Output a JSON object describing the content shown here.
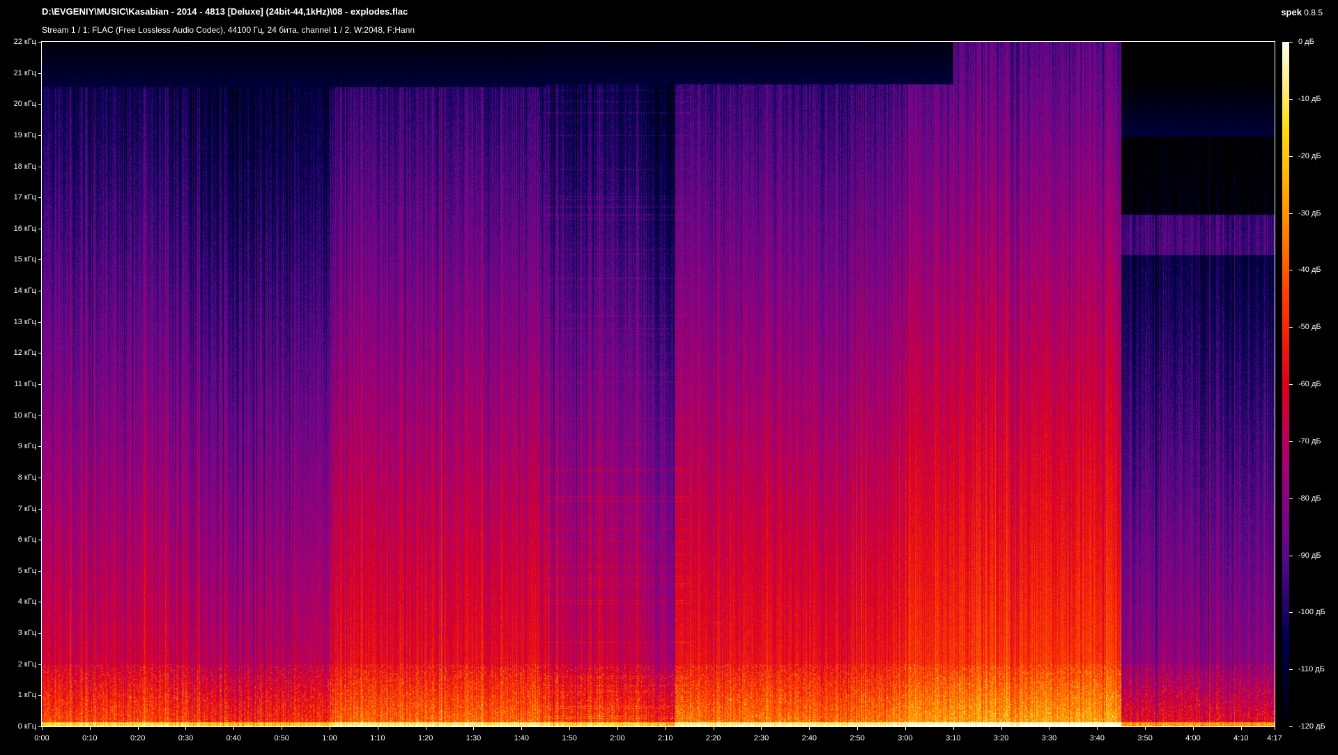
{
  "header": {
    "title": "D:\\EVGENIY\\MUSIC\\Kasabian - 2014 - 4813 [Deluxe] (24bit-44,1kHz)\\08 - explodes.flac",
    "subtitle": "Stream 1 / 1: FLAC (Free Lossless Audio Codec), 44100 Гц, 24 бита, channel 1 / 2, W:2048, F:Hann",
    "app_name": "spek",
    "app_version": "0.8.5"
  },
  "chart_data": {
    "type": "heatmap",
    "x_axis": {
      "unit": "time",
      "range": [
        "0:00",
        "4:17"
      ],
      "tick_labels": [
        "0:00",
        "0:10",
        "0:20",
        "0:30",
        "0:40",
        "0:50",
        "1:00",
        "1:10",
        "1:20",
        "1:30",
        "1:40",
        "1:50",
        "2:00",
        "2:10",
        "2:20",
        "2:30",
        "2:40",
        "2:50",
        "3:00",
        "3:10",
        "3:20",
        "3:30",
        "3:40",
        "3:50",
        "4:00",
        "4:10",
        "4:17"
      ]
    },
    "y_axis": {
      "unit": "kHz",
      "range": [
        0,
        22
      ],
      "tick_labels": [
        "0 кГц",
        "1 кГц",
        "2 кГц",
        "3 кГц",
        "4 кГц",
        "5 кГц",
        "6 кГц",
        "7 кГц",
        "8 кГц",
        "9 кГц",
        "10 кГц",
        "11 кГц",
        "12 кГц",
        "13 кГц",
        "14 кГц",
        "15 кГц",
        "16 кГц",
        "17 кГц",
        "18 кГц",
        "19 кГц",
        "20 кГц",
        "21 кГц",
        "22 кГц"
      ]
    },
    "color_scale": {
      "range_db": [
        -120,
        0
      ],
      "tick_labels": [
        "0 дБ",
        "-10 дБ",
        "-20 дБ",
        "-30 дБ",
        "-40 дБ",
        "-50 дБ",
        "-60 дБ",
        "-70 дБ",
        "-80 дБ",
        "-90 дБ",
        "-100 дБ",
        "-110 дБ",
        "-120 дБ"
      ],
      "colors": [
        "#000000",
        "#000050",
        "#5a0a8c",
        "#a0007a",
        "#e0001e",
        "#ff3c00",
        "#ff9600",
        "#ffdc14",
        "#fffff0"
      ]
    }
  }
}
